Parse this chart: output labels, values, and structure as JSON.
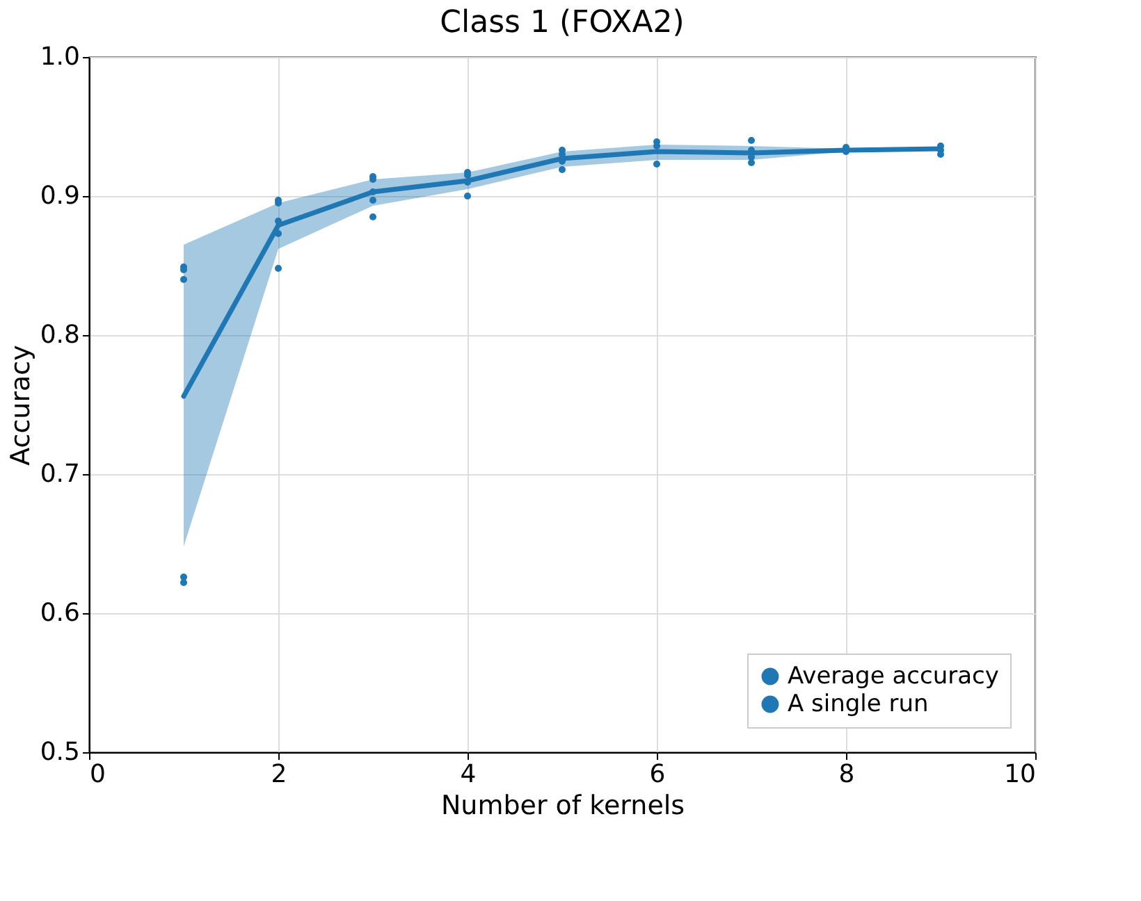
{
  "chart_data": {
    "type": "line",
    "title": "Class 1 (FOXA2)",
    "xlabel": "Number of kernels",
    "ylabel": "Accuracy",
    "xlim": [
      0,
      10
    ],
    "xticks": [
      0,
      2,
      4,
      6,
      8,
      10
    ],
    "ylim": [
      0.5,
      1.0
    ],
    "yticks": [
      {
        "value": 0.5,
        "label": "0.5"
      },
      {
        "value": 0.6,
        "label": "0.6"
      },
      {
        "value": 0.7,
        "label": "0.7"
      },
      {
        "value": 0.8,
        "label": "0.8"
      },
      {
        "value": 0.9,
        "label": "0.9"
      },
      {
        "value": 1.0,
        "label": "1.0"
      }
    ],
    "grid": true,
    "legend": "bottom right",
    "series": [
      {
        "name": "Average accuracy",
        "color": "#1f77b4",
        "marker": "none",
        "line_style": "solid",
        "x": [
          1,
          2,
          3,
          4,
          5,
          6,
          7,
          8,
          9
        ],
        "values": [
          0.756,
          0.879,
          0.903,
          0.911,
          0.927,
          0.932,
          0.931,
          0.933,
          0.934
        ],
        "lower": [
          0.648,
          0.862,
          0.893,
          0.905,
          0.921,
          0.926,
          0.926,
          0.932,
          0.933
        ],
        "upper": [
          0.865,
          0.895,
          0.912,
          0.917,
          0.932,
          0.937,
          0.936,
          0.934,
          0.935
        ]
      },
      {
        "name": "A single run",
        "type": "scatter",
        "color": "#1f77b4",
        "marker": "circle",
        "x": [
          1,
          1,
          1,
          1,
          1,
          2,
          2,
          2,
          2,
          2,
          3,
          3,
          3,
          3,
          3,
          4,
          4,
          4,
          4,
          5,
          5,
          5,
          5,
          6,
          6,
          6,
          7,
          7,
          7,
          7,
          8,
          8,
          9,
          9,
          9
        ],
        "values": [
          0.849,
          0.847,
          0.84,
          0.626,
          0.622,
          0.897,
          0.895,
          0.882,
          0.873,
          0.848,
          0.914,
          0.912,
          0.903,
          0.897,
          0.885,
          0.917,
          0.915,
          0.91,
          0.9,
          0.933,
          0.93,
          0.925,
          0.919,
          0.939,
          0.936,
          0.923,
          0.94,
          0.933,
          0.928,
          0.924,
          0.935,
          0.932,
          0.936,
          0.933,
          0.93
        ]
      }
    ]
  }
}
